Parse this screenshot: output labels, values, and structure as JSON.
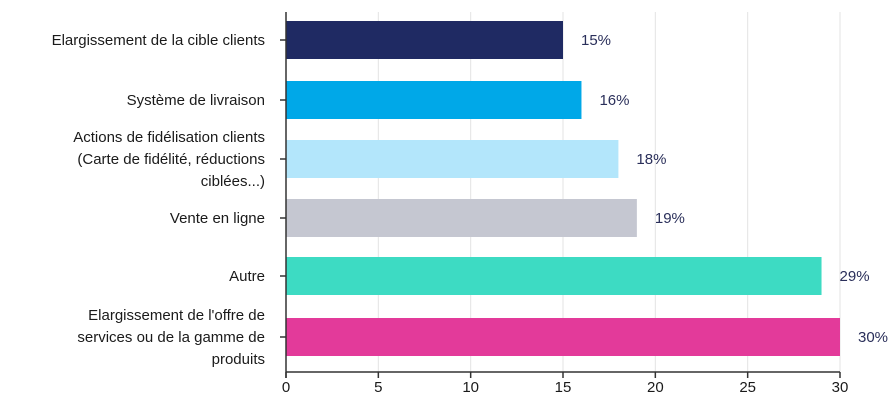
{
  "chart_data": {
    "type": "bar",
    "orientation": "horizontal",
    "categories": [
      [
        "Elargissement de la cible clients"
      ],
      [
        "Système de livraison"
      ],
      [
        "Actions de fidélisation clients",
        "(Carte de fidélité, réductions",
        "ciblées...)"
      ],
      [
        "Vente en ligne"
      ],
      [
        "Autre"
      ],
      [
        "Elargissement de l'offre de",
        "services ou de la gamme de",
        "produits"
      ]
    ],
    "values": [
      15,
      16,
      18,
      19,
      29,
      30
    ],
    "value_labels": [
      "15%",
      "16%",
      "18%",
      "19%",
      "29%",
      "30%"
    ],
    "colors": [
      "#1f2a63",
      "#00a8e8",
      "#b3e6fb",
      "#c5c7d1",
      "#3ddbc3",
      "#e33a9a"
    ],
    "xlim": [
      0,
      30
    ],
    "xticks": [
      0,
      5,
      10,
      15,
      20,
      25,
      30
    ],
    "title": "",
    "xlabel": "",
    "ylabel": "",
    "grid": true,
    "grid_color": "#e3e3e3"
  }
}
